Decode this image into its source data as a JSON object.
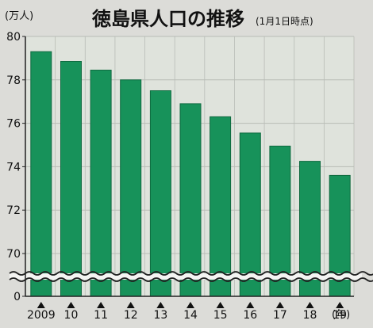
{
  "chart_data": {
    "type": "bar",
    "title": "徳島県人口の推移",
    "subtitle": "(1月1日時点)",
    "ylabel": "(万人)",
    "xlabel": "(年)",
    "ylim": [
      0,
      80
    ],
    "axis_break": true,
    "yticks": [
      "80",
      "78",
      "76",
      "74",
      "72",
      "70",
      "0"
    ],
    "categories": [
      "2009",
      "10",
      "11",
      "12",
      "13",
      "14",
      "15",
      "16",
      "17",
      "18",
      "19"
    ],
    "values": [
      79.3,
      78.85,
      78.45,
      78.0,
      77.5,
      76.9,
      76.3,
      75.55,
      74.95,
      74.25,
      73.6
    ],
    "grid": true,
    "legend": "none",
    "colors": {
      "bar": "#17925a",
      "bar_edge": "#0f6b40",
      "plot_bg": "#dfe3dc",
      "grid": "#b8bcb6",
      "axis": "#222222",
      "title": "#111111",
      "break_band": "#f4f4f2"
    }
  }
}
